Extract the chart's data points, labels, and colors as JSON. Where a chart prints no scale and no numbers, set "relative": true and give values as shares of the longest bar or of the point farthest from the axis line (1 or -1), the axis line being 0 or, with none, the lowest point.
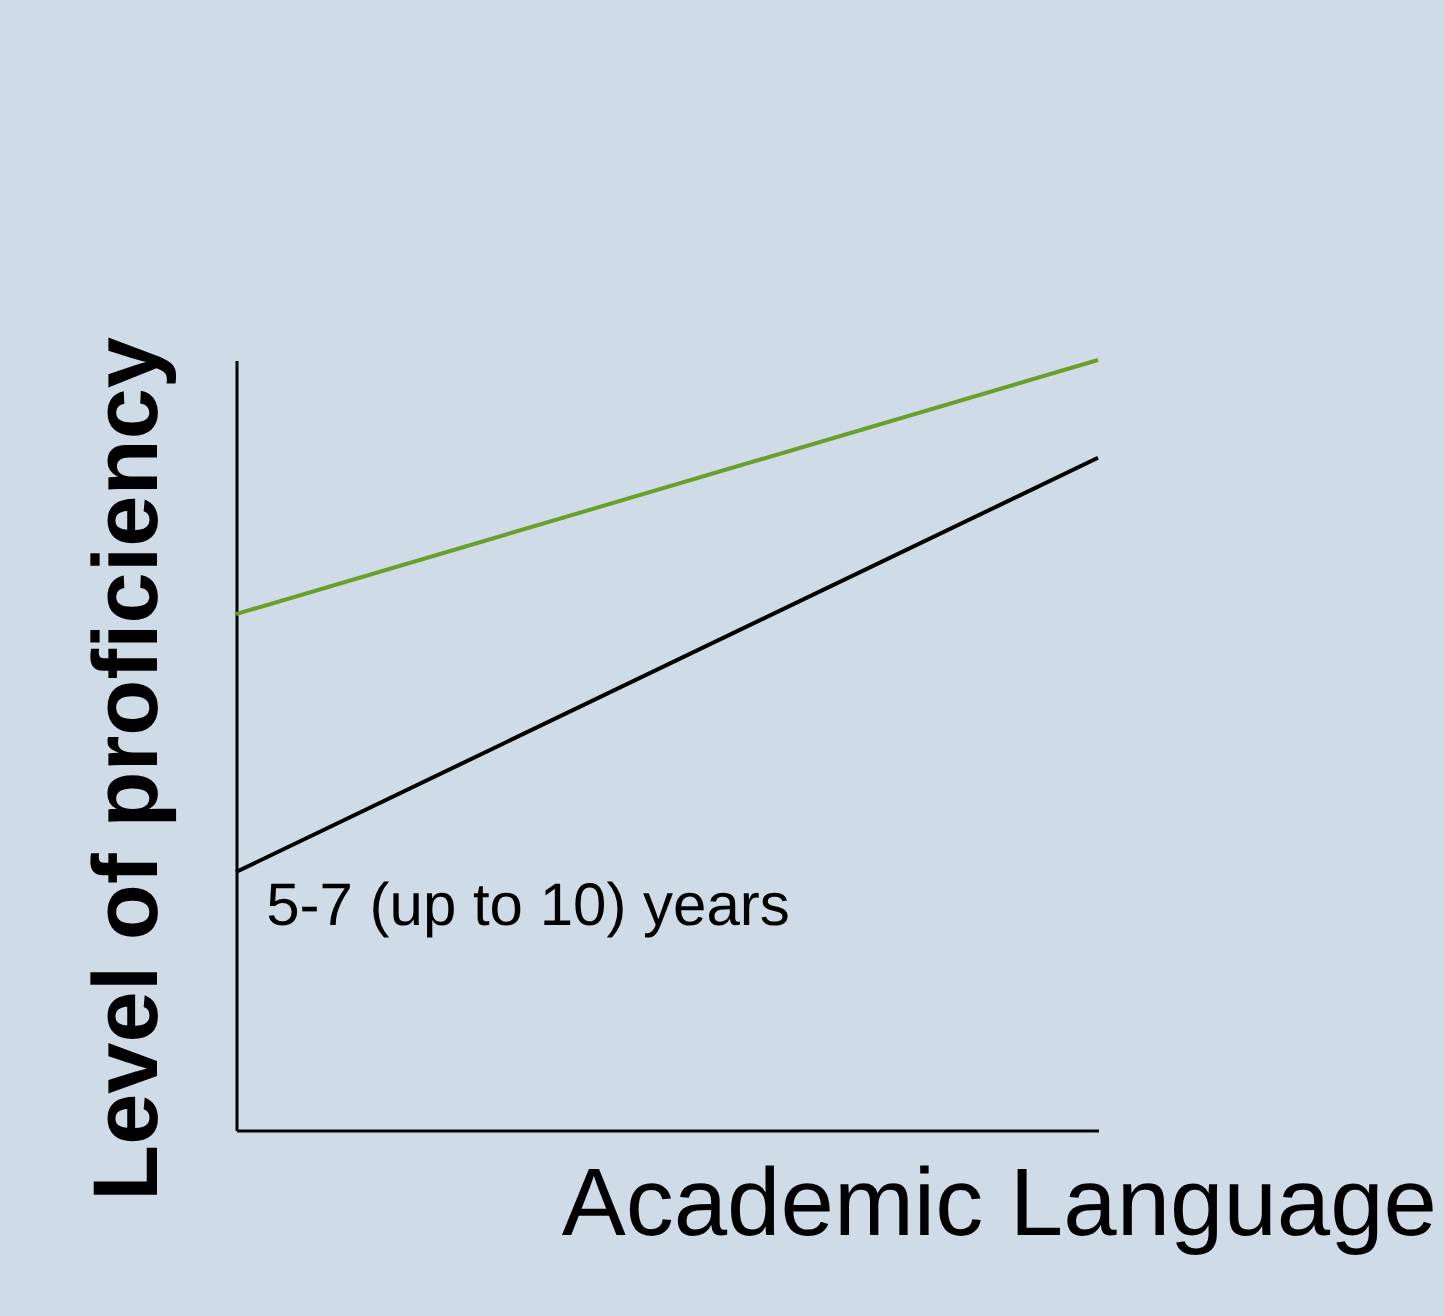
{
  "chart_data": {
    "type": "line",
    "relative": true,
    "xlabel": "Academic Language",
    "ylabel": "Level of proficiency",
    "categories": [
      null,
      null
    ],
    "series": [
      {
        "color": "#6a9f2a",
        "values": [
          0.67,
          1
        ]
      },
      {
        "color": "#000000",
        "values": [
          0.335,
          0.873
        ]
      }
    ],
    "annotations": [
      "5-7 (up to 10) years"
    ],
    "grid": false,
    "legend": false,
    "marker": "none"
  }
}
